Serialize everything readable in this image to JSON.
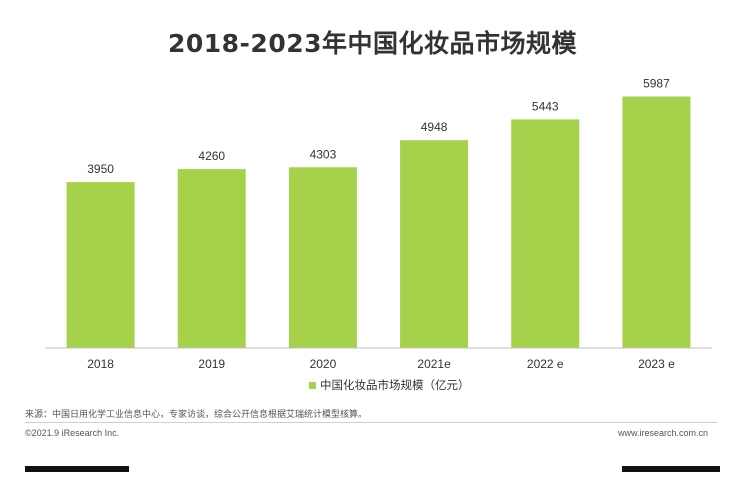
{
  "title": "2018-2023年中国化妆品市场规模",
  "chart_data": {
    "type": "bar",
    "title": "2018-2023年中国化妆品市场规模",
    "categories": [
      "2018",
      "2019",
      "2020",
      "2021e",
      "2022 e",
      "2023 e"
    ],
    "series": [
      {
        "name": "中国化妆品市场规模（亿元）",
        "values": [
          3950,
          4260,
          4303,
          4948,
          5443,
          5987
        ]
      }
    ],
    "value_labels": [
      "3950",
      "4260",
      "4303",
      "4948",
      "5443",
      "5987"
    ],
    "xlabel": "",
    "ylabel": "",
    "ylim": [
      0,
      6500
    ],
    "grid": false,
    "legend_position": "bottom-center",
    "bar_color": "#a5d24a"
  },
  "legend_label": "中国化妆品市场规模（亿元）",
  "source": "来源：中国日用化学工业信息中心，专家访谈，综合公开信息根据艾瑞统计模型核算。",
  "copyright": "©2021.9 iResearch Inc.",
  "website": "www.iresearch.com.cn"
}
